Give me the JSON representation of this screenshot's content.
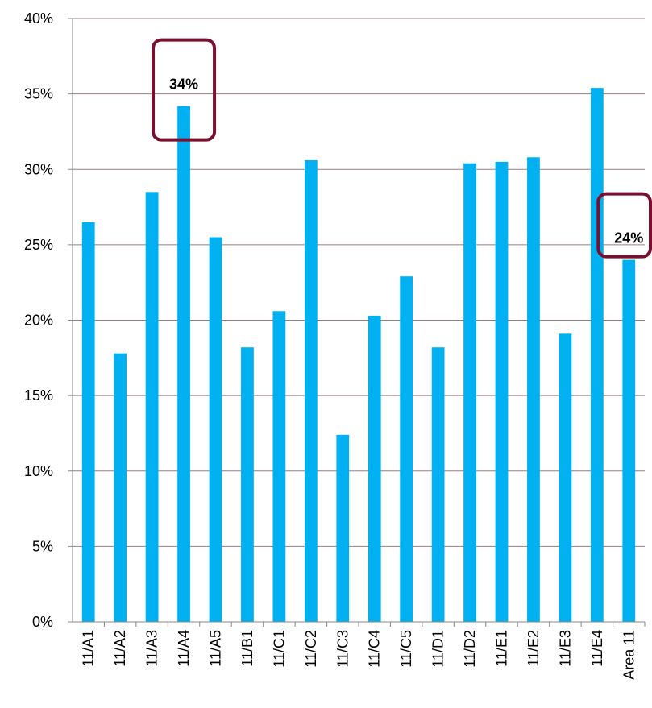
{
  "chart_data": {
    "type": "bar",
    "categories": [
      "11/A1",
      "11/A2",
      "11/A3",
      "11/A4",
      "11/A5",
      "11/B1",
      "11/C1",
      "11/C2",
      "11/C3",
      "11/C4",
      "11/C5",
      "11/D1",
      "11/D2",
      "11/E1",
      "11/E2",
      "11/E3",
      "11/E4",
      "Area 11"
    ],
    "values": [
      26.5,
      17.8,
      28.5,
      34.2,
      25.5,
      18.2,
      20.6,
      30.6,
      12.4,
      20.3,
      22.9,
      18.2,
      30.4,
      30.5,
      30.8,
      19.1,
      35.4,
      24.0
    ],
    "value_labels": [
      null,
      null,
      null,
      "34%",
      null,
      null,
      null,
      null,
      null,
      null,
      null,
      null,
      null,
      null,
      null,
      null,
      null,
      "24%"
    ],
    "color": "#00b0f0",
    "ylim": [
      0,
      40
    ],
    "yticks": [
      {
        "value": 0,
        "label": "0%"
      },
      {
        "value": 5,
        "label": "5%"
      },
      {
        "value": 10,
        "label": "10%"
      },
      {
        "value": 15,
        "label": "15%"
      },
      {
        "value": 20,
        "label": "20%"
      },
      {
        "value": 25,
        "label": "25%"
      },
      {
        "value": 30,
        "label": "30%"
      },
      {
        "value": 35,
        "label": "35%"
      },
      {
        "value": 40,
        "label": "40%"
      }
    ],
    "grid": true
  }
}
